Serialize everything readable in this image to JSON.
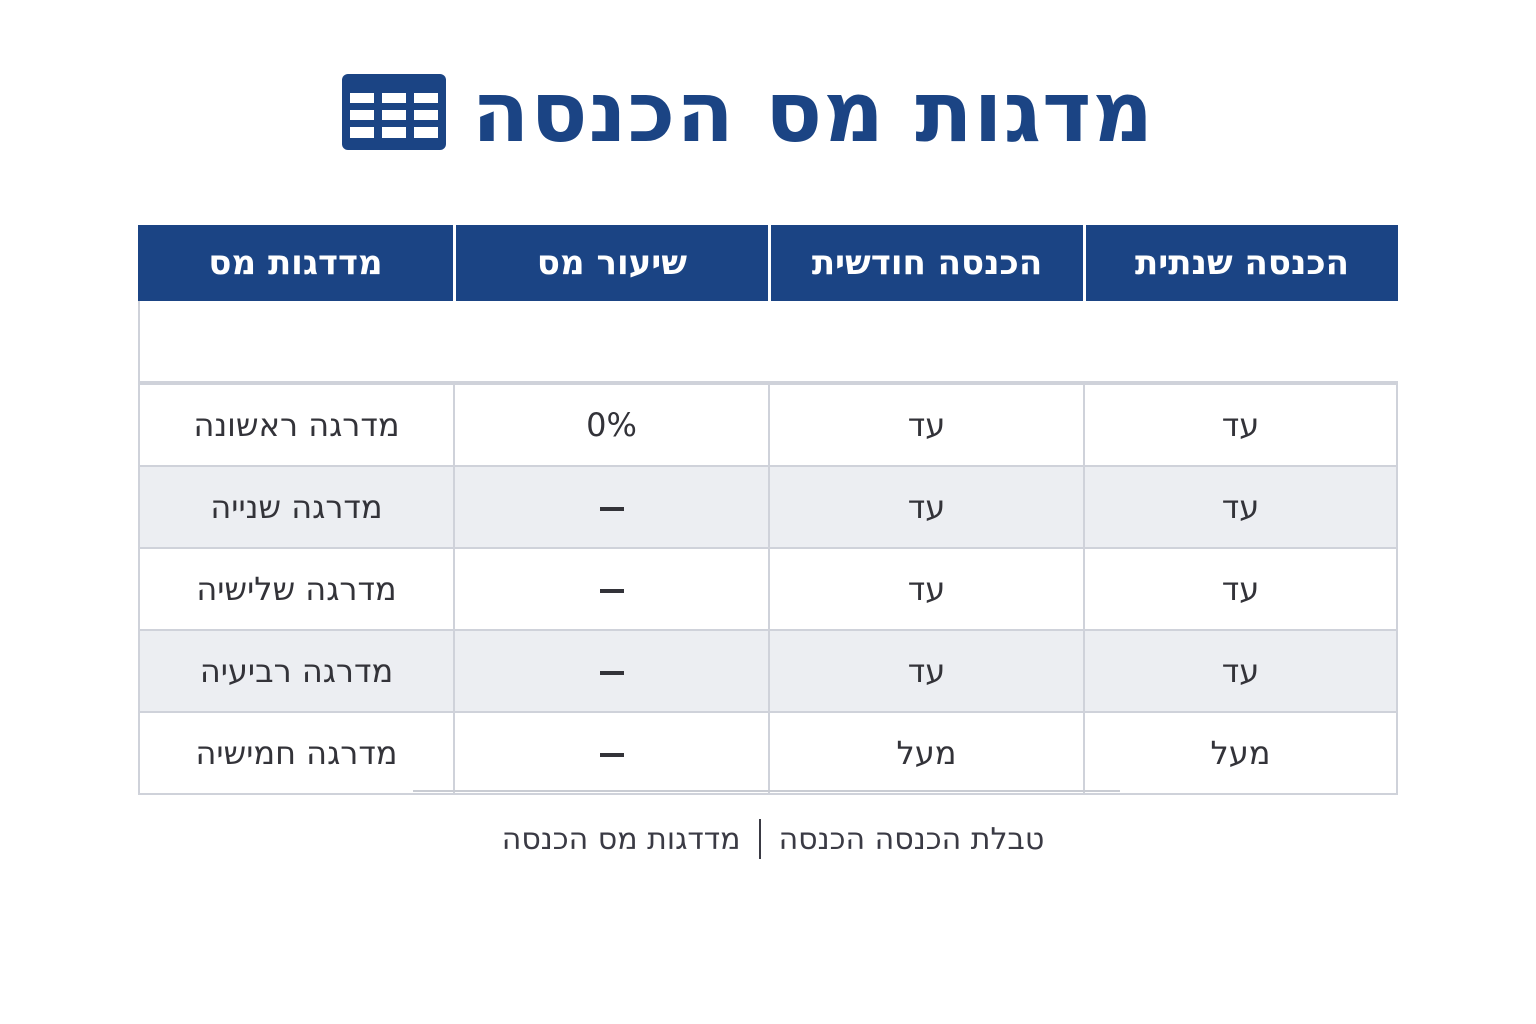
{
  "title": {
    "text": "מדגות מס הכנסה",
    "icon": "table-icon",
    "color": "#1b4484"
  },
  "table": {
    "header_color": "#1b4484",
    "stripe_color": "#eceef2",
    "headers": [
      "הכנסה שנתית",
      "הכנסה חודשית",
      "שיעור מס",
      "מדדגות מס"
    ],
    "rows": [
      {
        "annual": "עד",
        "monthly": "עד",
        "rate": "0%",
        "bracket": "מדרגה ראשונה"
      },
      {
        "annual": "עד",
        "monthly": "עד",
        "rate": "–",
        "bracket": "מדרגה שנייה"
      },
      {
        "annual": "עד",
        "monthly": "עד",
        "rate": "–",
        "bracket": "מדרגה שלישיה"
      },
      {
        "annual": "עד",
        "monthly": "עד",
        "rate": "–",
        "bracket": "מדרגה רביעיה"
      },
      {
        "annual": "מעל",
        "monthly": "מעל",
        "rate": "–",
        "bracket": "מדרגה חמישיה"
      }
    ]
  },
  "footer": {
    "left_text": "טבלת הכנסה הכנסה",
    "right_text": "מדדגות מס הכנסה"
  }
}
